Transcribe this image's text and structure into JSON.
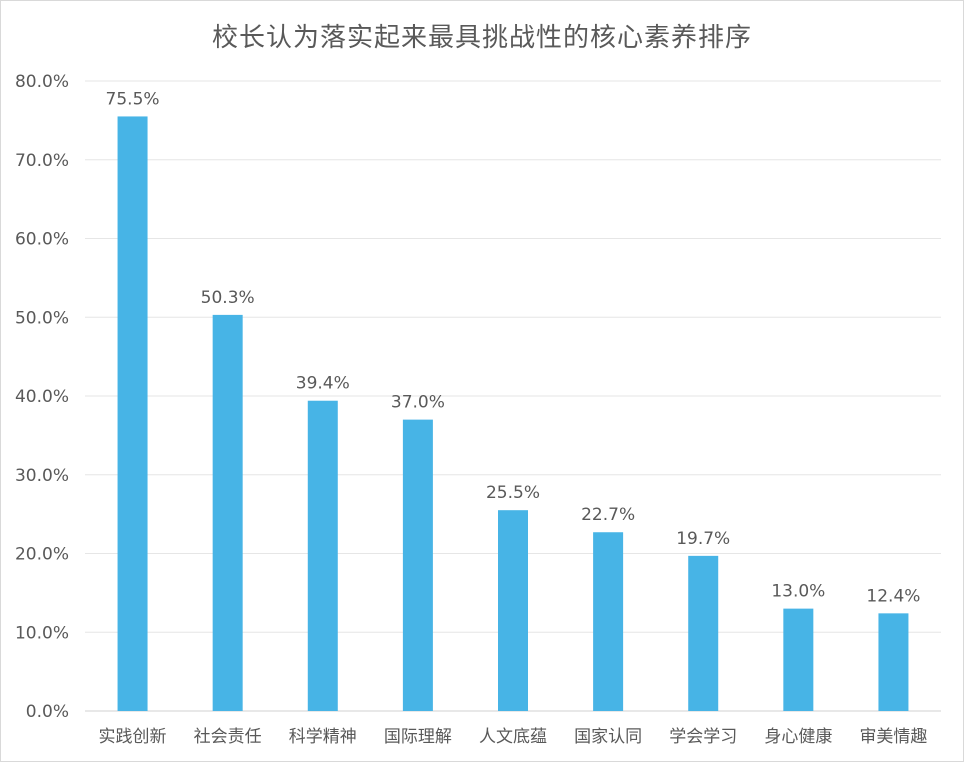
{
  "chart_data": {
    "type": "bar",
    "title": "校长认为落实起来最具挑战性的核心素养排序",
    "xlabel": "",
    "ylabel": "",
    "categories": [
      "实践创新",
      "社会责任",
      "科学精神",
      "国际理解",
      "人文底蕴",
      "国家认同",
      "学会学习",
      "身心健康",
      "审美情趣"
    ],
    "values": [
      75.5,
      50.3,
      39.4,
      37.0,
      25.5,
      22.7,
      19.7,
      13.0,
      12.4
    ],
    "data_labels": [
      "75.5%",
      "50.3%",
      "39.4%",
      "37.0%",
      "25.5%",
      "22.7%",
      "19.7%",
      "13.0%",
      "12.4%"
    ],
    "ylim": [
      0,
      80
    ],
    "yticks": [
      0,
      10,
      20,
      30,
      40,
      50,
      60,
      70,
      80
    ],
    "ytick_labels": [
      "0.0%",
      "10.0%",
      "20.0%",
      "30.0%",
      "40.0%",
      "50.0%",
      "60.0%",
      "70.0%",
      "80.0%"
    ],
    "grid": true,
    "legend": "none",
    "bar_color": "#47b4e6",
    "grid_color": "#e6e6e6",
    "text_color": "#595959"
  }
}
